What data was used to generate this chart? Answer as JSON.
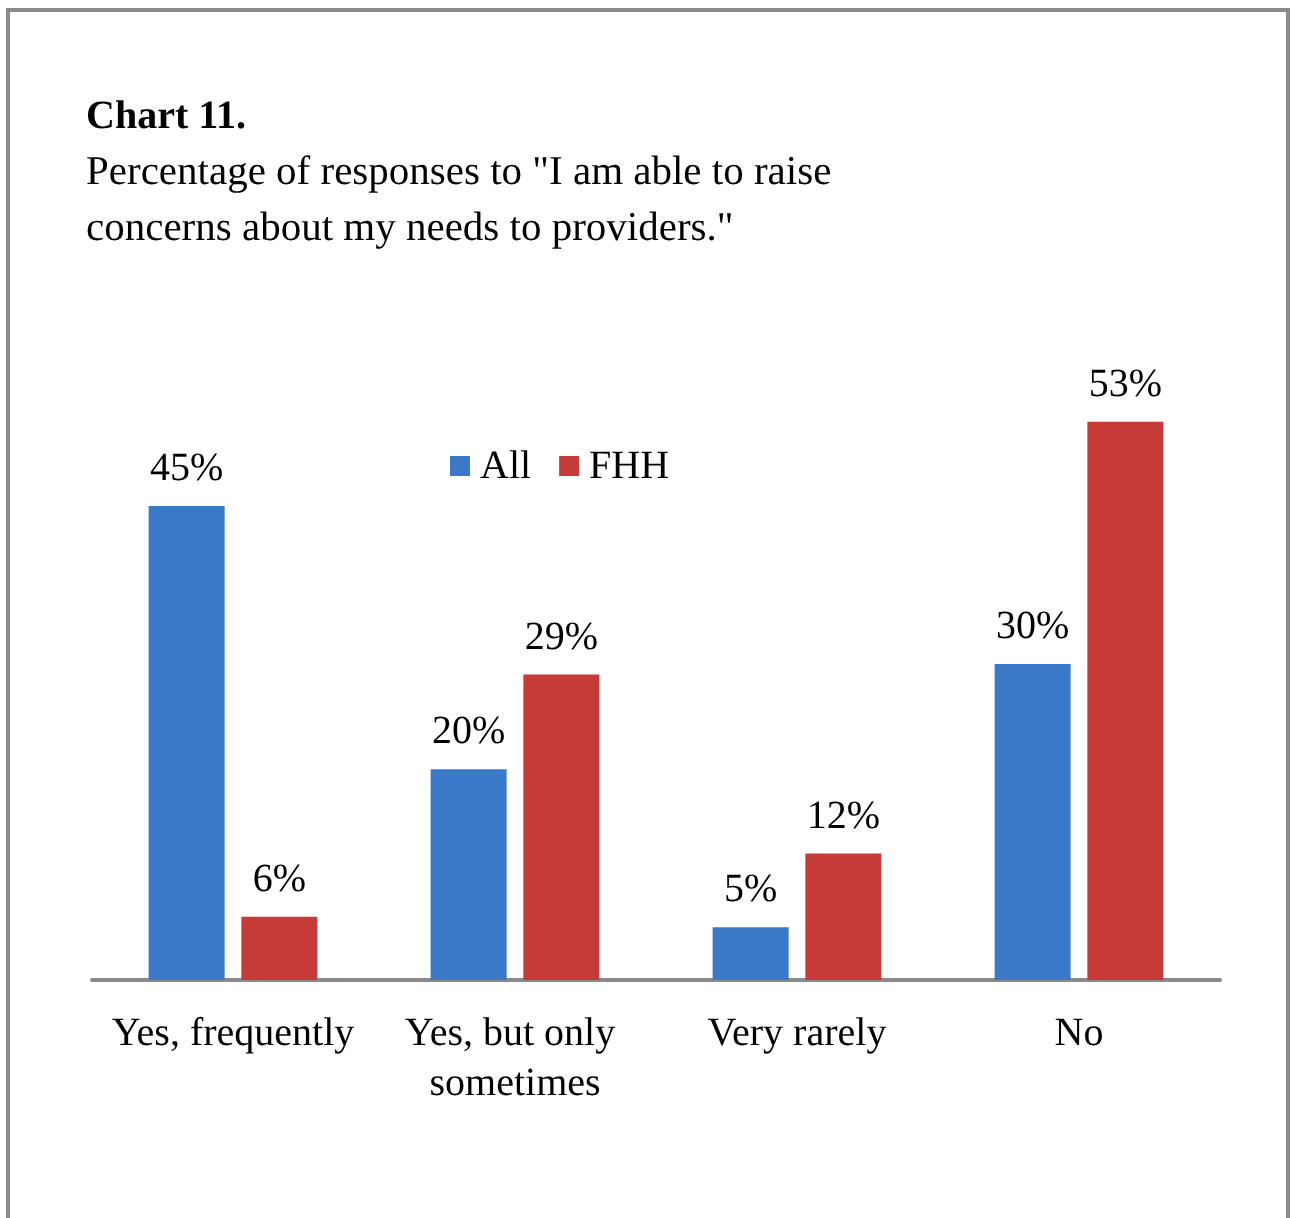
{
  "chart_data": {
    "type": "bar",
    "title": "Chart 11.",
    "subtitle": "Percentage of responses to \"I am able to raise concerns about my needs to providers.\"",
    "categories": [
      "Yes, frequently",
      "Yes, but only sometimes",
      "Very rarely",
      "No"
    ],
    "series": [
      {
        "name": "All",
        "color": "#3a78c8",
        "values": [
          45,
          20,
          5,
          30
        ],
        "value_labels": [
          "45%",
          "20%",
          "5%",
          "30%"
        ]
      },
      {
        "name": "FHH",
        "color": "#c63a37",
        "values": [
          6,
          29,
          12,
          53
        ],
        "value_labels": [
          "6%",
          "29%",
          "12%",
          "53%"
        ]
      }
    ],
    "legend": "top",
    "grid": false,
    "tick_labels": "x"
  }
}
